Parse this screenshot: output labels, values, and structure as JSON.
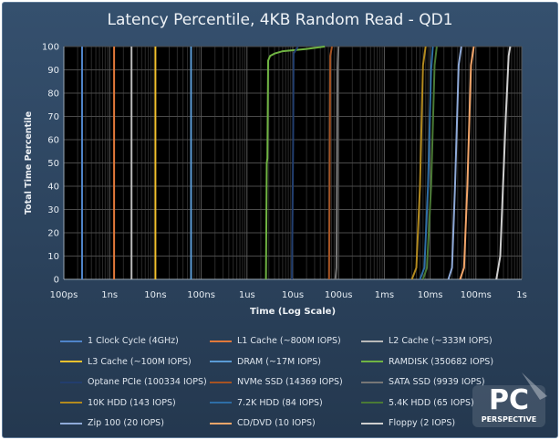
{
  "chart_data": {
    "type": "line",
    "title": "Latency Percentile, 4KB Random Read - QD1",
    "xlabel": "Time (Log Scale)",
    "ylabel": "Total Time Percentile",
    "x_scale": "log",
    "x_ticks": [
      "100ps",
      "1ns",
      "10ns",
      "100ns",
      "1us",
      "10us",
      "100us",
      "1ms",
      "10ms",
      "100ms",
      "1s"
    ],
    "xlim": [
      "100ps",
      "1s"
    ],
    "ylim": [
      0,
      100
    ],
    "y_ticks": [
      0,
      10,
      20,
      30,
      40,
      50,
      60,
      70,
      80,
      90,
      100
    ],
    "grid": true,
    "legend_position": "bottom",
    "series": [
      {
        "name": "1 Clock Cycle (4GHz)",
        "color": "#4f84c9",
        "points": [
          [
            "250ps",
            0
          ],
          [
            "250ps",
            100
          ]
        ]
      },
      {
        "name": "L1 Cache (~800M IOPS)",
        "color": "#e2793a",
        "points": [
          [
            "1.25ns",
            0
          ],
          [
            "1.25ns",
            100
          ]
        ]
      },
      {
        "name": "L2 Cache (~333M IOPS)",
        "color": "#b9b9b9",
        "points": [
          [
            "3ns",
            0
          ],
          [
            "3ns",
            100
          ]
        ]
      },
      {
        "name": "L3 Cache (~100M IOPS)",
        "color": "#f2c12e",
        "points": [
          [
            "10ns",
            0
          ],
          [
            "10ns",
            100
          ]
        ]
      },
      {
        "name": "DRAM (~17M IOPS)",
        "color": "#5b9bd5",
        "points": [
          [
            "60ns",
            0
          ],
          [
            "60ns",
            100
          ]
        ]
      },
      {
        "name": "RAMDISK (350682 IOPS)",
        "color": "#70b443",
        "points": [
          [
            "2.6us",
            0
          ],
          [
            "2.7us",
            50
          ],
          [
            "2.8us",
            52
          ],
          [
            "2.9us",
            94
          ],
          [
            "3.2us",
            96
          ],
          [
            "4us",
            97
          ],
          [
            "6us",
            98
          ],
          [
            "20us",
            99
          ],
          [
            "50us",
            100
          ]
        ]
      },
      {
        "name": "Optane PCIe (100334 IOPS)",
        "color": "#223e6e",
        "points": [
          [
            "9.6us",
            0
          ],
          [
            "9.9us",
            30
          ],
          [
            "10.2us",
            60
          ],
          [
            "10.4us",
            97
          ],
          [
            "13us",
            100
          ]
        ]
      },
      {
        "name": "NVMe SSD (14369 IOPS)",
        "color": "#a65322",
        "points": [
          [
            "62us",
            0
          ],
          [
            "64us",
            50
          ],
          [
            "66us",
            96
          ],
          [
            "72us",
            100
          ]
        ]
      },
      {
        "name": "SATA SSD (9939 IOPS)",
        "color": "#777777",
        "points": [
          [
            "85us",
            0
          ],
          [
            "90us",
            5
          ],
          [
            "95us",
            90
          ],
          [
            "100us",
            100
          ]
        ]
      },
      {
        "name": "10K HDD (143 IOPS)",
        "color": "#b38a1e",
        "points": [
          [
            "4ms",
            0
          ],
          [
            "5ms",
            5
          ],
          [
            "6ms",
            40
          ],
          [
            "7ms",
            92
          ],
          [
            "8ms",
            100
          ]
        ]
      },
      {
        "name": "7.2K HDD (84 IOPS)",
        "color": "#2e6ea6",
        "points": [
          [
            "6ms",
            0
          ],
          [
            "7.5ms",
            5
          ],
          [
            "9ms",
            40
          ],
          [
            "10.5ms",
            90
          ],
          [
            "11.5ms",
            100
          ]
        ]
      },
      {
        "name": "5.4K HDD (65 IOPS)",
        "color": "#4a7a35",
        "points": [
          [
            "7ms",
            0
          ],
          [
            "8.5ms",
            5
          ],
          [
            "10.5ms",
            40
          ],
          [
            "12.5ms",
            92
          ],
          [
            "14ms",
            100
          ]
        ]
      },
      {
        "name": "Zip 100 (20 IOPS)",
        "color": "#8faad8",
        "points": [
          [
            "25ms",
            0
          ],
          [
            "30ms",
            5
          ],
          [
            "35ms",
            40
          ],
          [
            "42ms",
            92
          ],
          [
            "48ms",
            100
          ]
        ]
      },
      {
        "name": "CD/DVD (10 IOPS)",
        "color": "#f4a66a",
        "points": [
          [
            "45ms",
            0
          ],
          [
            "55ms",
            5
          ],
          [
            "65ms",
            40
          ],
          [
            "78ms",
            92
          ],
          [
            "90ms",
            100
          ]
        ]
      },
      {
        "name": "Floppy (2 IOPS)",
        "color": "#cfcfcf",
        "points": [
          [
            "280ms",
            0
          ],
          [
            "340ms",
            10
          ],
          [
            "390ms",
            40
          ],
          [
            "450ms",
            70
          ],
          [
            "520ms",
            96
          ],
          [
            "560ms",
            100
          ]
        ]
      }
    ]
  },
  "logo": {
    "line1": "PC",
    "line2": "PERSPECTIVE"
  }
}
